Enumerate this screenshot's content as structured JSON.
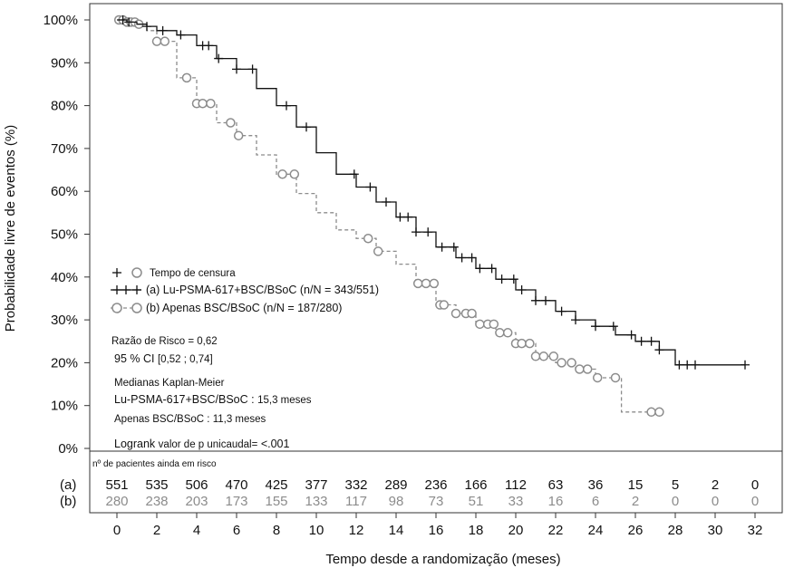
{
  "chart_data": {
    "type": "line",
    "subtype": "kaplan-meier",
    "title": "",
    "xlabel": "Tempo desde a randomização (meses)",
    "ylabel": "Probabilidade livre de eventos (%)",
    "xlim": [
      0,
      32
    ],
    "ylim": [
      0,
      100
    ],
    "xticks": [
      0,
      2,
      4,
      6,
      8,
      10,
      12,
      14,
      16,
      18,
      20,
      22,
      24,
      26,
      28,
      30,
      32
    ],
    "xtick_labels": [
      "0",
      "2",
      "4",
      "6",
      "8",
      "10",
      "12",
      "14",
      "16",
      "18",
      "20",
      "22",
      "24",
      "26",
      "28",
      "30",
      "32"
    ],
    "yticks": [
      0,
      10,
      20,
      30,
      40,
      50,
      60,
      70,
      80,
      90,
      100
    ],
    "ytick_labels": [
      "0%",
      "10%",
      "20%",
      "30%",
      "40%",
      "50%",
      "60%",
      "70%",
      "80%",
      "90%",
      "100%"
    ],
    "grid": false,
    "legend_placement": "left-middle",
    "colors": {
      "a": "#111111",
      "b": "#8c8c8c"
    },
    "series": [
      {
        "key": "a",
        "name": "(a) Lu-PSMA-617+BSC/BSoC (n/N = 343/551)",
        "line_style": "solid",
        "censor_marker": "plus",
        "x": [
          0,
          0.5,
          1,
          1.5,
          2,
          3,
          4,
          5,
          6,
          7,
          8,
          9,
          10,
          11,
          12,
          13,
          14,
          15,
          16,
          17,
          18,
          19,
          20,
          21,
          22,
          23,
          24,
          25,
          26,
          27,
          27.2,
          28,
          29,
          30,
          31.5
        ],
        "y": [
          100,
          99.5,
          99,
          98.5,
          97.5,
          96.5,
          94,
          91,
          88.5,
          84,
          80,
          75,
          69,
          64,
          61,
          57.5,
          54,
          50.5,
          47,
          44.5,
          42,
          39.5,
          37,
          34.5,
          32,
          30,
          28.5,
          26.5,
          25,
          25,
          23,
          19.5,
          19.5,
          19.5,
          19.5
        ],
        "censored_x": [
          0.3,
          0.6,
          1.5,
          2.3,
          3.2,
          4.3,
          4.6,
          5.1,
          6.0,
          6.8,
          8.5,
          9.5,
          11.9,
          12.7,
          13.5,
          14.2,
          14.6,
          15.0,
          15.6,
          16.3,
          16.9,
          17.3,
          17.8,
          18.2,
          18.8,
          19.3,
          19.9,
          20.3,
          21.0,
          21.5,
          22.3,
          23.0,
          24.0,
          24.9,
          25.8,
          26.3,
          26.8,
          27.2,
          28.2,
          28.6,
          29.0,
          31.5
        ],
        "at_risk_label": "(a)",
        "at_risk": [
          551,
          535,
          506,
          470,
          425,
          377,
          332,
          289,
          236,
          166,
          112,
          63,
          36,
          15,
          5,
          2,
          0
        ]
      },
      {
        "key": "b",
        "name": "(b) Apenas BSC/BSoC (n/N = 187/280)",
        "line_style": "dashed",
        "censor_marker": "circle",
        "x": [
          0,
          0.5,
          1,
          1.5,
          2,
          3,
          4,
          5,
          6,
          7,
          8,
          9,
          10,
          11,
          12,
          13,
          14,
          15,
          16,
          17,
          18,
          19,
          20,
          21,
          22,
          23,
          24,
          25,
          25.3,
          26,
          27
        ],
        "y": [
          100,
          99.5,
          99,
          97.5,
          95,
          86.5,
          80.5,
          76,
          73,
          68.5,
          64,
          59.5,
          55,
          51,
          49,
          46,
          43,
          38.5,
          33.5,
          31.5,
          29,
          27,
          24.5,
          21.5,
          20,
          18.5,
          16.5,
          16.5,
          8.5,
          8.5,
          8.5
        ],
        "censored_x": [
          0.1,
          0.3,
          0.5,
          0.7,
          0.9,
          1.1,
          2.0,
          2.4,
          3.5,
          4.0,
          4.3,
          4.7,
          5.7,
          6.1,
          8.3,
          8.9,
          12.6,
          13.1,
          15.1,
          15.5,
          15.9,
          16.2,
          16.4,
          17.0,
          17.5,
          17.8,
          18.2,
          18.6,
          18.9,
          19.2,
          19.6,
          20.0,
          20.3,
          20.7,
          21.0,
          21.4,
          21.9,
          22.3,
          22.8,
          23.2,
          23.6,
          24.1,
          25.0,
          26.8,
          27.2
        ],
        "at_risk_label": "(b)",
        "at_risk": [
          280,
          238,
          203,
          173,
          155,
          133,
          117,
          98,
          73,
          51,
          33,
          16,
          6,
          2,
          0,
          0,
          0
        ]
      }
    ],
    "legend": {
      "censor_label": "Tempo de censura"
    },
    "annotations": {
      "hazard_ratio": "Razão de Risco  = 0,62",
      "ci_prefix": "95 % CI",
      "ci_value": "[0,52 ; 0,74]",
      "median_title": "Medianas Kaplan-Meier",
      "median_a_label": "Lu-PSMA-617+BSC/BSoC :",
      "median_a_value": "15,3  meses",
      "median_b_label": "Apenas BSC/BSoC :",
      "median_b_value": "11,3  meses",
      "logrank_word": "Logrank",
      "logrank_rest": "valor de p unicaudal=",
      "logrank_value": "<.001"
    },
    "at_risk_title": "nº de pacientes ainda em risco"
  }
}
